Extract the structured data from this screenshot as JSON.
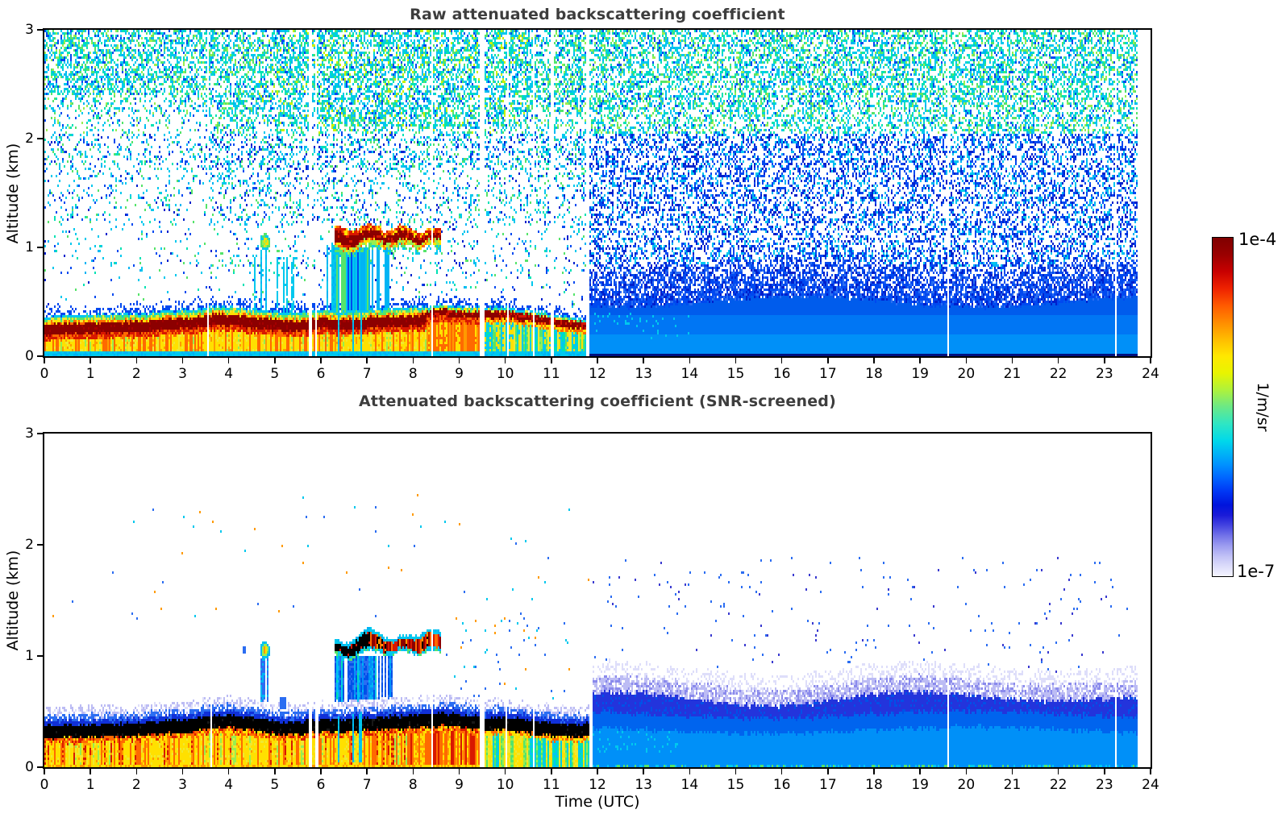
{
  "chart_data": {
    "type": "heatmap",
    "x": {
      "label": "Time (UTC)",
      "min": 0,
      "max": 24,
      "units": "hours",
      "ticks": [
        0,
        1,
        2,
        3,
        4,
        5,
        6,
        7,
        8,
        9,
        10,
        11,
        12,
        13,
        14,
        15,
        16,
        17,
        18,
        19,
        20,
        21,
        22,
        23,
        24
      ]
    },
    "y": {
      "label": "Altitude (km)",
      "min": 0,
      "max": 3,
      "ticks": [
        0,
        1,
        2,
        3
      ]
    },
    "colorscale": {
      "type": "log",
      "min": 1e-07,
      "max": 0.0001,
      "min_label": "1e-7",
      "max_label": "1e-4",
      "units": "1/m/sr",
      "gradient_stops": [
        [
          0,
          "#7f0000"
        ],
        [
          5,
          "#9a0000"
        ],
        [
          10,
          "#c80000"
        ],
        [
          15,
          "#ee2200"
        ],
        [
          20,
          "#ff5a00"
        ],
        [
          25,
          "#ff8c00"
        ],
        [
          30,
          "#ffbc00"
        ],
        [
          35,
          "#ffe800"
        ],
        [
          40,
          "#e8f400"
        ],
        [
          45,
          "#aef23c"
        ],
        [
          50,
          "#6ae887"
        ],
        [
          55,
          "#2ee6c4"
        ],
        [
          60,
          "#00d8ea"
        ],
        [
          63,
          "#00baf4"
        ],
        [
          67,
          "#0092ff"
        ],
        [
          71,
          "#0064ff"
        ],
        [
          75,
          "#0036f4"
        ],
        [
          79,
          "#0014dc"
        ],
        [
          82,
          "#1b1bd8"
        ],
        [
          85,
          "#4444e0"
        ],
        [
          88,
          "#7272e8"
        ],
        [
          91,
          "#9c9cf0"
        ],
        [
          94,
          "#c0c0f6"
        ],
        [
          97,
          "#dcdcfa"
        ],
        [
          100,
          "#f4f4ff"
        ]
      ]
    },
    "plots": [
      {
        "id": "raw",
        "title": "Raw attenuated backscattering coefficient",
        "description": "Lidar attenuated backscatter before SNR screening; speckle noise fills the free troposphere."
      },
      {
        "id": "screened",
        "title": "Attenuated backscattering coefficient (SNR-screened)",
        "description": "Same field after SNR screening; low-SNR pixels are blanked (white)."
      }
    ],
    "features": {
      "surface_aerosol_layer": "Strong boundary-layer backscatter 0-0.5 km from 00:00 to ~11:50 UTC (saturated core), weaker blue layer 12:00-24:00 UTC",
      "cloud_layer": "Cloud at 1.0-1.2 km between ~06:20 and ~08:35 UTC, saturated core before ~07:00",
      "precipitation": "Virga / fall streaks below cloud ~06:20-07:30 UTC down to the boundary layer",
      "aerosol_plume": "Small elevated plume near 1.05 km at ~04:45 UTC",
      "data_gaps_utc": [
        3.6,
        5.8,
        5.9,
        8.4,
        9.5,
        10.0,
        10.6,
        11.0,
        11.8,
        19.6,
        23.2
      ],
      "data_end_utc": 23.7
    },
    "render": {
      "data_end": 23.72,
      "right_raw": 11.83,
      "right_scr": 11.88,
      "gaps_raw": [
        [
          3.56,
          0.05
        ],
        [
          5.78,
          0.06
        ],
        [
          5.9,
          0.04
        ],
        [
          8.42,
          0.05
        ],
        [
          9.5,
          0.13
        ],
        [
          10.05,
          0.05
        ],
        [
          10.62,
          0.06
        ],
        [
          11.02,
          0.04
        ],
        [
          11.8,
          0.06
        ],
        [
          19.6,
          0.05
        ],
        [
          23.25,
          0.05
        ]
      ],
      "gaps_scr": [
        [
          3.62,
          0.05
        ],
        [
          5.78,
          0.06
        ],
        [
          5.92,
          0.05
        ],
        [
          8.42,
          0.05
        ],
        [
          9.5,
          0.1
        ],
        [
          10.02,
          0.05
        ],
        [
          10.62,
          0.05
        ],
        [
          11.85,
          0.08
        ],
        [
          19.6,
          0.05
        ],
        [
          23.25,
          0.05
        ]
      ],
      "bl": {
        "hours": [
          0,
          1,
          2,
          3,
          3.8,
          4.5,
          5,
          5.5,
          6,
          6.5,
          7,
          7.5,
          8,
          8.6,
          9,
          9.6,
          10,
          10.5,
          11,
          11.5,
          11.85
        ],
        "raw_top": [
          0.37,
          0.38,
          0.39,
          0.42,
          0.46,
          0.43,
          0.41,
          0.4,
          0.43,
          0.41,
          0.43,
          0.44,
          0.45,
          0.47,
          0.46,
          0.44,
          0.45,
          0.42,
          0.39,
          0.35,
          0.34
        ],
        "scr_top": [
          0.42,
          0.43,
          0.44,
          0.47,
          0.52,
          0.49,
          0.46,
          0.45,
          0.48,
          0.47,
          0.49,
          0.5,
          0.51,
          0.53,
          0.52,
          0.5,
          0.5,
          0.47,
          0.44,
          0.42,
          0.45
        ]
      },
      "cloud": {
        "start": 6.3,
        "end": 8.6,
        "black_end": 7.05,
        "hours": [
          6.3,
          6.6,
          6.9,
          7.2,
          7.5,
          7.8,
          8.1,
          8.4,
          8.6
        ],
        "base": [
          1.04,
          1.01,
          1.05,
          1.08,
          1.04,
          1.07,
          1.05,
          1.08,
          1.06
        ]
      },
      "virga": {
        "start": 6.32,
        "deep_end": 7.05,
        "end": 7.55
      },
      "plume": {
        "t0": 4.68,
        "t1": 4.9,
        "a0": 0.97,
        "a1": 1.13
      },
      "palette": {
        "cyan": "#00c8ee",
        "teal": "#00e2b4",
        "green": "#55e46a",
        "lgreen": "#98ee50",
        "ygreen": "#c8f000",
        "blue": "#0049f0",
        "dblue": "#0020cc",
        "mblue": "#2b6df2",
        "azure": "#0090f8",
        "sky": "#00b4f4",
        "darkred": "#8c0000",
        "red": "#d81800",
        "orange": "#ff6a00",
        "lorange": "#ff9a00",
        "yellow": "#ffe000",
        "yel2": "#f0e830",
        "navy": "#001080",
        "black": "#000000",
        "lav1": "#8a8aec",
        "lav2": "#bcbcf4",
        "lav3": "#dedefa"
      }
    }
  }
}
